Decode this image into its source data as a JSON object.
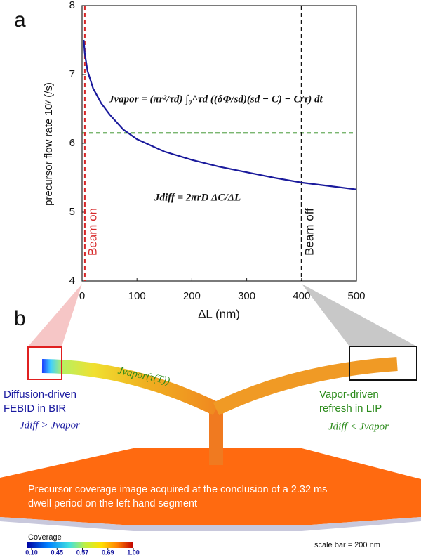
{
  "chart_data": {
    "type": "line",
    "panel_label": "a",
    "ylabel": "precursor flow rate 10ʸ (/s)",
    "xlabel": "ΔL (nm)",
    "x": [
      3,
      5,
      10,
      20,
      35,
      50,
      75,
      100,
      150,
      200,
      250,
      300,
      350,
      400,
      450,
      500
    ],
    "series": [
      {
        "name": "Jdiff",
        "color": "#1a1a9c",
        "values": [
          7.5,
          7.3,
          7.05,
          6.8,
          6.58,
          6.42,
          6.2,
          6.06,
          5.88,
          5.76,
          5.66,
          5.58,
          5.5,
          5.43,
          5.38,
          5.33
        ]
      }
    ],
    "xlim": [
      0,
      500
    ],
    "ylim": [
      4,
      8
    ],
    "xticks": [
      0,
      100,
      200,
      300,
      400,
      500
    ],
    "yticks": [
      4,
      5,
      6,
      7,
      8
    ],
    "hlines": [
      {
        "value": 6.15,
        "color": "#2a8a1a"
      }
    ],
    "vlines": [
      {
        "value": 5,
        "color": "#d62728",
        "label": "Beam on"
      },
      {
        "value": 400,
        "color": "#111111",
        "label": "Beam off"
      }
    ],
    "annotations": [
      {
        "text": "Jvapor = (πr²/τd) ∫₀^τd ((δΦ/sd)(sd − C) − C/τ) dt",
        "color": "#2a8a1a"
      },
      {
        "text": "Jdiff = 2πrD ΔC/ΔL",
        "color": "#1a1a9c"
      }
    ]
  },
  "panel_b": {
    "panel_label": "b",
    "left_note": [
      "Diffusion-driven",
      "FEBID in BIR"
    ],
    "left_relation": "Jdiff > Jvapor",
    "right_note": [
      "Vapor-driven",
      "refresh in LIP"
    ],
    "right_relation": "Jdiff < Jvapor",
    "arm_label": "Jvapor(τ(T))",
    "caption": [
      "Precursor coverage image acquired at the conclusion of a 2.32 ms",
      "dwell period on the left hand segment"
    ],
    "colorbar": {
      "title": "Coverage",
      "ticks": [
        {
          "value": 0.1,
          "label": "0.10"
        },
        0.45,
        0.57,
        0.69,
        {
          "value": 1.0,
          "label": "1.00"
        }
      ]
    },
    "scale_bar": "scale bar = 200 nm"
  }
}
